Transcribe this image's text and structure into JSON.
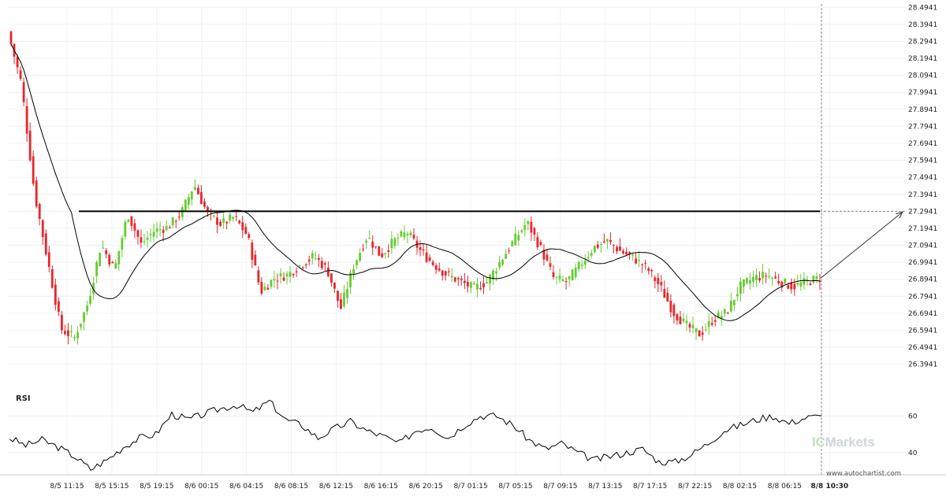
{
  "chart_data": [
    {
      "type": "candlestick",
      "y_ticks": [
        "28.4941",
        "28.3941",
        "28.2941",
        "28.1941",
        "28.0941",
        "27.9941",
        "27.8941",
        "27.7941",
        "27.6941",
        "27.5941",
        "27.4941",
        "27.3941",
        "27.2941",
        "27.1941",
        "27.0941",
        "26.9941",
        "26.8941",
        "26.7941",
        "26.6941",
        "26.5941",
        "26.4941",
        "26.3941"
      ],
      "ylim": [
        26.36,
        28.5
      ],
      "x_ticks": [
        "8/5 11:15",
        "8/5 15:15",
        "8/5 19:15",
        "8/6 00:15",
        "8/6 04:15",
        "8/6 08:15",
        "8/6 12:15",
        "8/6 16:15",
        "8/6 20:15",
        "8/7 01:15",
        "8/7 05:15",
        "8/7 09:15",
        "8/7 13:15",
        "8/7 17:15",
        "8/7 22:15",
        "8/8 02:15",
        "8/8 06:15",
        "8/8 10:30"
      ],
      "last_tick_bold": true,
      "resistance_level": 27.2941,
      "moving_average_shown": true,
      "forecast_arrow": {
        "from": 26.9,
        "to": 27.29
      },
      "colors": {
        "up": "#66cc33",
        "down": "#e8262b",
        "level_line": "#000000",
        "ma": "#000000"
      },
      "keypoints": [
        28.35,
        28.05,
        27.4,
        27.0,
        26.6,
        26.55,
        26.75,
        27.1,
        26.95,
        27.28,
        27.1,
        27.18,
        27.2,
        27.28,
        27.45,
        27.28,
        27.22,
        27.26,
        27.15,
        26.82,
        26.9,
        26.92,
        26.98,
        27.03,
        26.95,
        26.72,
        26.98,
        27.15,
        27.03,
        27.12,
        27.17,
        27.06,
        26.98,
        26.92,
        26.88,
        26.84,
        26.88,
        27.0,
        27.12,
        27.23,
        27.08,
        26.9,
        26.88,
        26.98,
        27.08,
        27.12,
        27.06,
        27.02,
        26.96,
        26.85,
        26.7,
        26.62,
        26.57,
        26.66,
        26.7,
        26.85,
        26.9,
        26.92,
        26.88,
        26.85,
        26.88,
        26.9
      ]
    },
    {
      "type": "line",
      "title": "RSI",
      "y_ticks": [
        "60",
        "40"
      ],
      "ylim": [
        28,
        70
      ],
      "values": [
        48,
        44,
        47,
        43,
        38,
        31,
        36,
        43,
        48,
        50,
        61,
        58,
        61,
        64,
        66,
        62,
        68,
        58,
        55,
        48,
        53,
        57,
        52,
        49,
        45,
        52,
        54,
        48,
        55,
        60,
        60,
        55,
        47,
        42,
        45,
        40,
        36,
        38,
        40,
        42,
        35,
        35,
        39,
        45,
        52,
        55,
        58,
        60,
        56,
        59,
        60
      ]
    }
  ],
  "branding": {
    "ic": "IC",
    "markets": "Markets"
  },
  "footer": {
    "url": "www.autochartist.com"
  }
}
